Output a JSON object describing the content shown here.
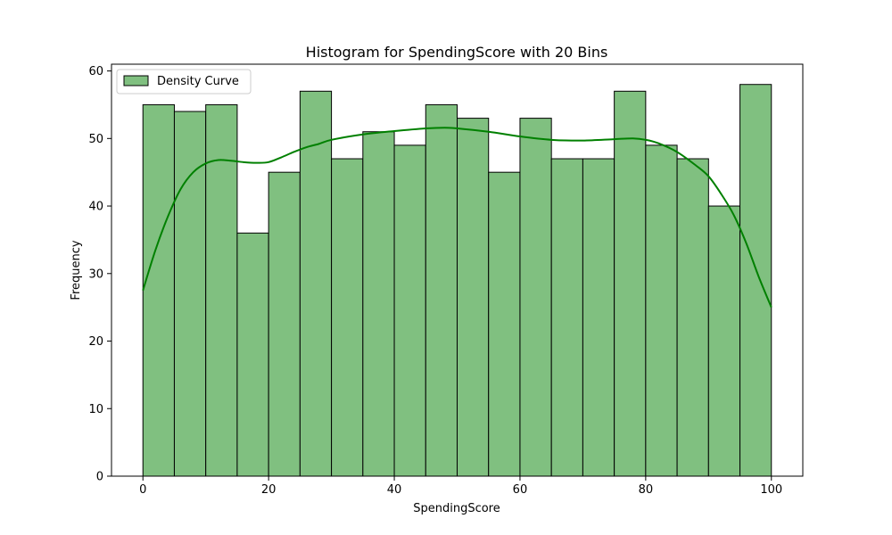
{
  "chart_data": {
    "type": "bar",
    "title": "Histogram for SpendingScore with 20 Bins",
    "xlabel": "SpendingScore",
    "ylabel": "Frequency",
    "xlim": [
      -5,
      105
    ],
    "ylim": [
      0,
      61
    ],
    "xticks": [
      0,
      20,
      40,
      60,
      80,
      100
    ],
    "yticks": [
      0,
      10,
      20,
      30,
      40,
      50,
      60
    ],
    "bin_edges": [
      0,
      5,
      10,
      15,
      20,
      25,
      30,
      35,
      40,
      45,
      50,
      55,
      60,
      65,
      70,
      75,
      80,
      85,
      90,
      95,
      100
    ],
    "values": [
      55,
      54,
      55,
      36,
      45,
      57,
      47,
      51,
      49,
      55,
      53,
      45,
      53,
      47,
      47,
      57,
      49,
      47,
      40,
      58
    ],
    "bar_color": "#80c080",
    "bar_edge_color": "#000000",
    "curve_color": "#008000",
    "legend": {
      "label": "Density Curve",
      "position": "top-left"
    },
    "density_curve": {
      "x": [
        0,
        2,
        4,
        6,
        8,
        10,
        12,
        14,
        16,
        18,
        20,
        22,
        24,
        26,
        28,
        30,
        35,
        40,
        45,
        48,
        50,
        55,
        60,
        65,
        70,
        75,
        78,
        80,
        82,
        85,
        88,
        90,
        92,
        94,
        96,
        98,
        100
      ],
      "y": [
        27.5,
        33.5,
        38.5,
        42.5,
        45,
        46.3,
        46.8,
        46.7,
        46.5,
        46.4,
        46.5,
        47.2,
        48,
        48.7,
        49.2,
        49.8,
        50.6,
        51.1,
        51.5,
        51.6,
        51.5,
        51,
        50.3,
        49.8,
        49.7,
        49.9,
        50,
        49.8,
        49.3,
        48,
        46,
        44.4,
        41.8,
        38.7,
        34.5,
        29.5,
        25
      ]
    }
  }
}
